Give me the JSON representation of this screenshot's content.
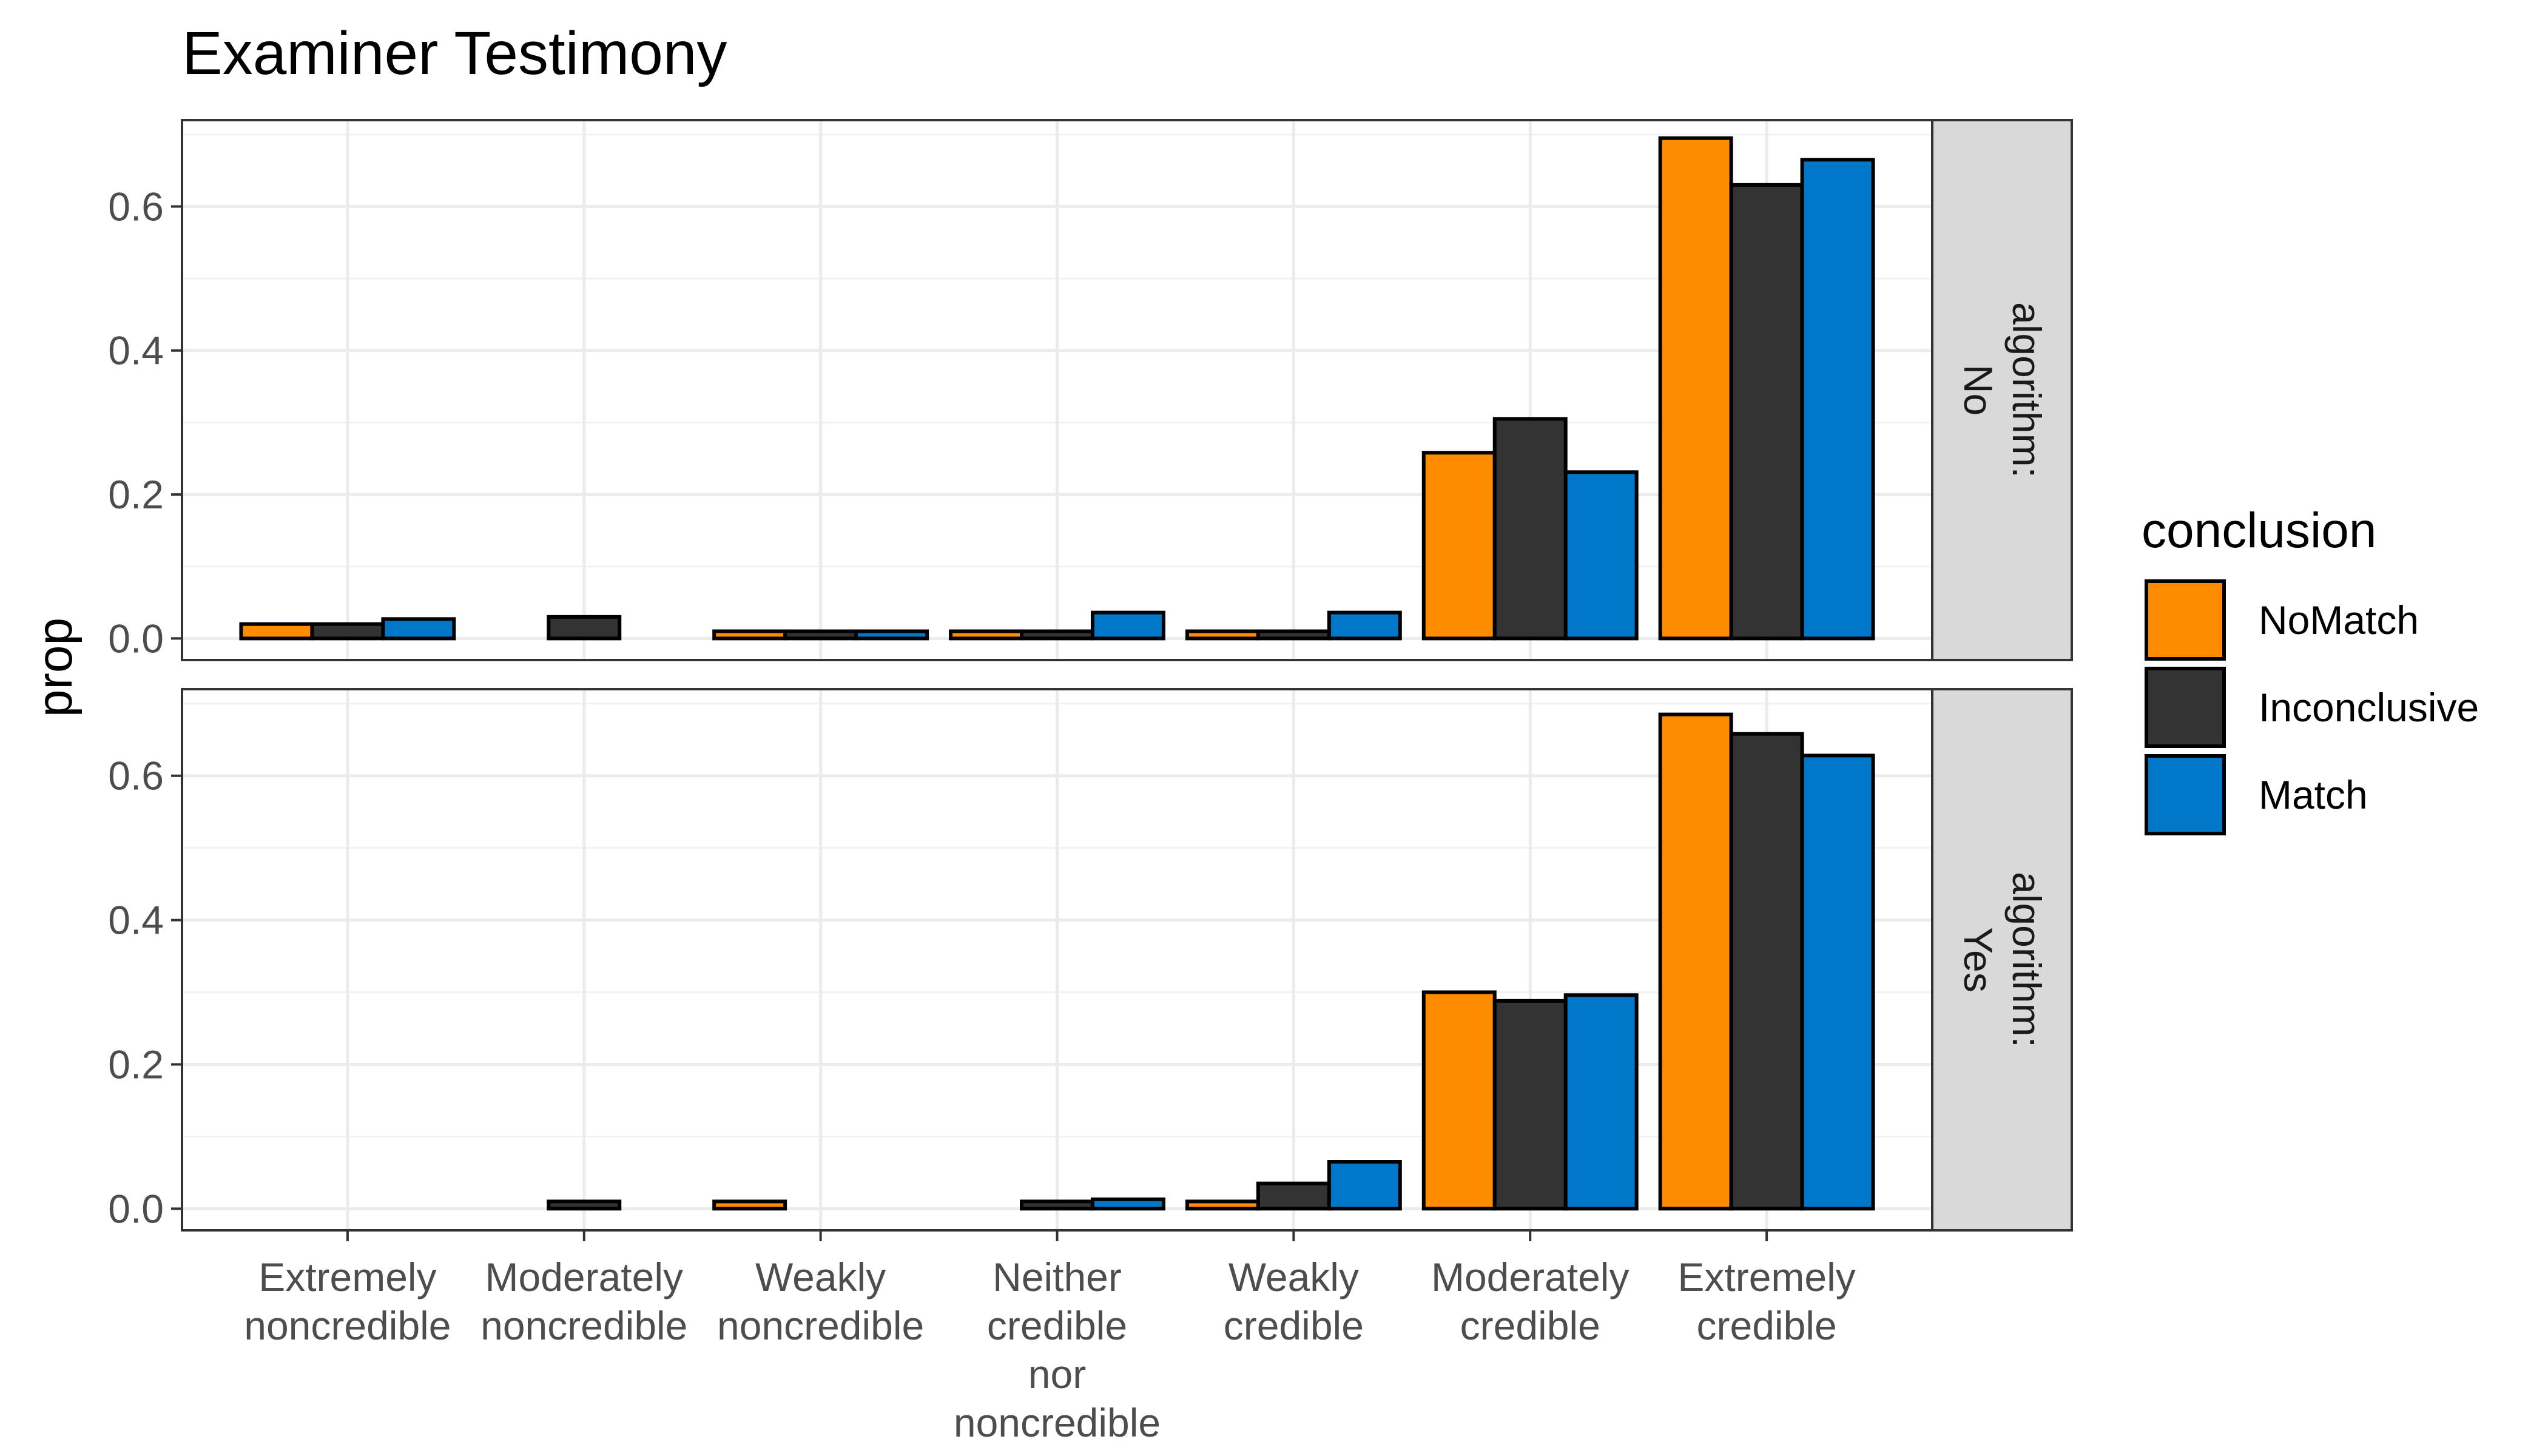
{
  "chart_data": {
    "type": "bar",
    "title": "Examiner Testimony",
    "xlabel": "",
    "ylabel": "prop",
    "ylim": [
      -0.03,
      0.72
    ],
    "yticks": [
      "0.0",
      "0.2",
      "0.4",
      "0.6"
    ],
    "ytick_values": [
      0,
      0.2,
      0.4,
      0.6
    ],
    "categories": [
      [
        "Extremely",
        "noncredible"
      ],
      [
        "Moderately",
        "noncredible"
      ],
      [
        "Weakly",
        "noncredible"
      ],
      [
        "Neither",
        "credible",
        "nor",
        "noncredible"
      ],
      [
        "Weakly",
        "credible"
      ],
      [
        "Moderately",
        "credible"
      ],
      [
        "Extremely",
        "credible"
      ]
    ],
    "legend": {
      "title": "conclusion",
      "position": "right",
      "entries": [
        {
          "name": "NoMatch",
          "color": "#ff8c00"
        },
        {
          "name": "Inconclusive",
          "color": "#333333"
        },
        {
          "name": "Match",
          "color": "#0077c8"
        }
      ]
    },
    "facets": [
      {
        "strip": [
          "algorithm:",
          "No"
        ],
        "series": [
          {
            "name": "NoMatch",
            "values": [
              0.02,
              0,
              0.01,
              0.01,
              0.01,
              0.258,
              0.695
            ]
          },
          {
            "name": "Inconclusive",
            "values": [
              0.02,
              0.03,
              0.01,
              0.01,
              0.01,
              0.305,
              0.63
            ]
          },
          {
            "name": "Match",
            "values": [
              0.027,
              0,
              0.01,
              0.036,
              0.036,
              0.231,
              0.665
            ]
          }
        ]
      },
      {
        "strip": [
          "algorithm:",
          "Yes"
        ],
        "series": [
          {
            "name": "NoMatch",
            "values": [
              0,
              0,
              0.01,
              0,
              0.01,
              0.3,
              0.685
            ]
          },
          {
            "name": "Inconclusive",
            "values": [
              0,
              0.01,
              0,
              0.01,
              0.035,
              0.288,
              0.658
            ]
          },
          {
            "name": "Match",
            "values": [
              0,
              0,
              0,
              0.013,
              0.065,
              0.296,
              0.628
            ]
          }
        ]
      }
    ],
    "grid": true
  }
}
